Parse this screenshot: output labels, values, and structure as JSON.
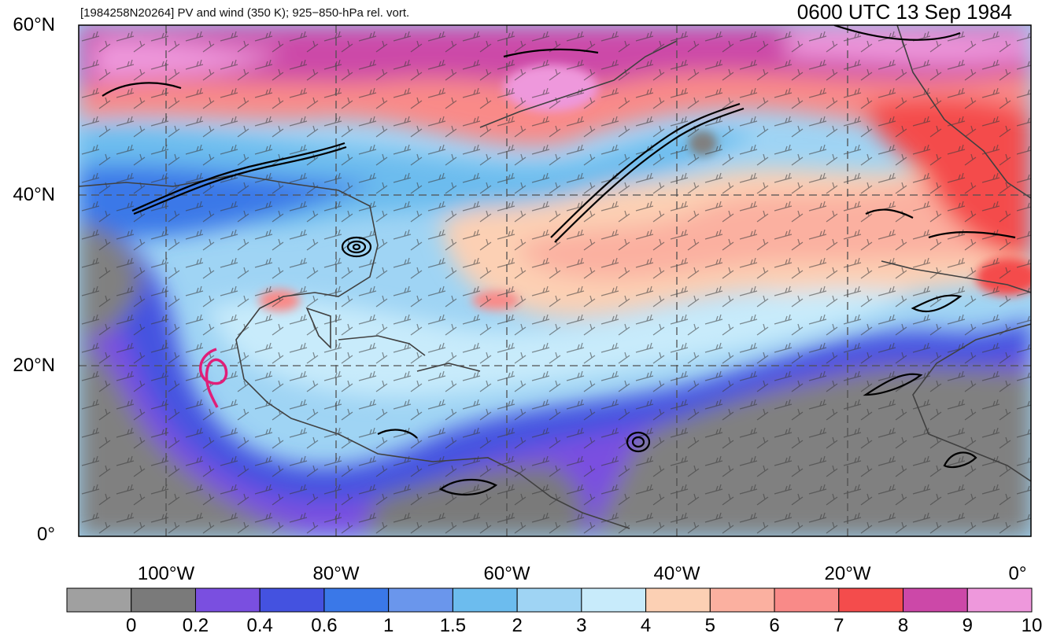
{
  "header": {
    "storm_id_label": "[1984258N20264] PV and wind (350 K); 925−850-hPa rel. vort.",
    "datetime": "0600 UTC 13 Sep 1984"
  },
  "axes": {
    "lat_ticks": [
      "60°N",
      "40°N",
      "20°N",
      "0°"
    ],
    "lon_ticks": [
      "100°W",
      "80°W",
      "60°W",
      "40°W",
      "20°W",
      "0°"
    ]
  },
  "colorbar": {
    "labels": [
      "0",
      "0.2",
      "0.4",
      "0.6",
      "1",
      "1.5",
      "2",
      "3",
      "4",
      "5",
      "6",
      "7",
      "8",
      "9",
      "10"
    ],
    "colors": [
      "#a0a0a0",
      "#7a7a7a",
      "#7a4fe0",
      "#4452e0",
      "#3a78e8",
      "#6a96ec",
      "#6cbcee",
      "#9fd4f4",
      "#c8ebfb",
      "#fcd0b4",
      "#fbb0a0",
      "#f98a88",
      "#f44c4c",
      "#cc48a8",
      "#ee98dc"
    ]
  },
  "map": {
    "land_mask_color": "#808080",
    "contour_color": "#000000",
    "track_color": "#e01e78",
    "gridline_color": "#505050"
  }
}
